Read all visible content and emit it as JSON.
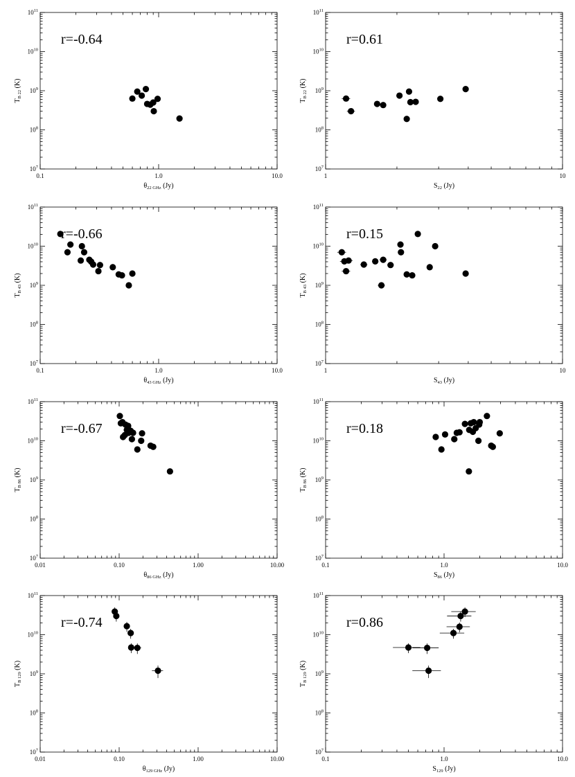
{
  "chart_data": [
    {
      "type": "scatter",
      "panel": "a",
      "xscale": "log",
      "yscale": "log",
      "xlim": [
        0.1,
        10
      ],
      "ylim": [
        10000000.0,
        100000000000.0
      ],
      "xticks": [
        "0.1",
        "1.0",
        "10.0"
      ],
      "yticks": [
        "10^7",
        "10^8",
        "10^9",
        "10^10",
        "10^11"
      ],
      "xlabel": {
        "main": "θ",
        "sub": "22 GHz",
        "unit": " (Jy)"
      },
      "ylabel": {
        "main": "T",
        "sub": "B 22",
        "unit": " (K)"
      },
      "annotation": "r=-0.64",
      "points": [
        [
          0.6,
          630000000.0
        ],
        [
          0.66,
          950000000.0
        ],
        [
          0.72,
          750000000.0
        ],
        [
          0.78,
          1100000000.0
        ],
        [
          0.8,
          460000000.0
        ],
        [
          0.85,
          440000000.0
        ],
        [
          0.9,
          500000000.0
        ],
        [
          0.91,
          300000000.0
        ],
        [
          0.98,
          620000000.0
        ],
        [
          1.5,
          195000000.0
        ]
      ]
    },
    {
      "type": "scatter",
      "panel": "b",
      "xscale": "log",
      "yscale": "log",
      "xlim": [
        1,
        10
      ],
      "ylim": [
        10000000.0,
        100000000000.0
      ],
      "xticks": [
        "1",
        "10"
      ],
      "yticks": [
        "10^7",
        "10^8",
        "10^9",
        "10^10",
        "10^11"
      ],
      "xlabel": {
        "main": "S",
        "sub": "22",
        "unit": " (Jy)"
      },
      "ylabel": {
        "main": "T",
        "sub": "B 22",
        "unit": " (K)"
      },
      "annotation": "r=0.61",
      "points": [
        [
          1.22,
          630000000.0,
          0.05
        ],
        [
          1.28,
          300000000.0,
          0.05
        ],
        [
          1.65,
          460000000.0,
          0.05
        ],
        [
          1.75,
          430000000.0,
          0.05
        ],
        [
          2.05,
          750000000.0,
          0.06
        ],
        [
          2.2,
          190000000.0,
          0.06
        ],
        [
          2.25,
          950000000.0,
          0.06
        ],
        [
          2.28,
          510000000.0,
          0.06
        ],
        [
          2.4,
          520000000.0,
          0.06
        ],
        [
          3.05,
          620000000.0,
          0.08
        ],
        [
          3.9,
          1100000000.0,
          0.1
        ]
      ]
    },
    {
      "type": "scatter",
      "panel": "c",
      "xscale": "log",
      "yscale": "log",
      "xlim": [
        0.1,
        10
      ],
      "ylim": [
        10000000.0,
        100000000000.0
      ],
      "xticks": [
        "0.1",
        "1.0",
        "10.0"
      ],
      "yticks": [
        "10^7",
        "10^8",
        "10^9",
        "10^10",
        "10^11"
      ],
      "xlabel": {
        "main": "θ",
        "sub": "43 GHz",
        "unit": " (Jy)"
      },
      "ylabel": {
        "main": "T",
        "sub": "B 43",
        "unit": " (K)"
      },
      "annotation": "r=-0.66",
      "points": [
        [
          0.148,
          20500000000.0
        ],
        [
          0.17,
          7000000000.0
        ],
        [
          0.18,
          11000000000.0
        ],
        [
          0.22,
          4300000000.0
        ],
        [
          0.225,
          10000000000.0
        ],
        [
          0.235,
          7000000000.0
        ],
        [
          0.26,
          4500000000.0
        ],
        [
          0.27,
          4000000000.0
        ],
        [
          0.28,
          3400000000.0
        ],
        [
          0.31,
          2300000000.0
        ],
        [
          0.32,
          3300000000.0
        ],
        [
          0.41,
          2900000000.0
        ],
        [
          0.46,
          1900000000.0
        ],
        [
          0.49,
          1800000000.0
        ],
        [
          0.56,
          1000000000.0
        ],
        [
          0.6,
          2000000000.0
        ]
      ]
    },
    {
      "type": "scatter",
      "panel": "d",
      "xscale": "log",
      "yscale": "log",
      "xlim": [
        1,
        10
      ],
      "ylim": [
        10000000.0,
        100000000000.0
      ],
      "xticks": [
        "1",
        "10"
      ],
      "yticks": [
        "10^7",
        "10^8",
        "10^9",
        "10^10",
        "10^11"
      ],
      "xlabel": {
        "main": "S",
        "sub": "43",
        "unit": " (Jy)"
      },
      "ylabel": {
        "main": "T",
        "sub": "B 43",
        "unit": " (K)"
      },
      "annotation": "r=0.15",
      "points": [
        [
          1.17,
          7000000000.0,
          0.05
        ],
        [
          1.2,
          4100000000.0,
          0.05
        ],
        [
          1.22,
          2300000000.0,
          0.05
        ],
        [
          1.25,
          4300000000.0,
          0.05
        ],
        [
          1.45,
          3400000000.0,
          0.05
        ],
        [
          1.62,
          4100000000.0,
          0.05
        ],
        [
          1.72,
          1000000000.0,
          0.06
        ],
        [
          1.75,
          4500000000.0,
          0.06
        ],
        [
          1.88,
          3300000000.0,
          0.06
        ],
        [
          2.07,
          11000000000.0,
          0.06
        ],
        [
          2.08,
          7000000000.0,
          0.06
        ],
        [
          2.2,
          1900000000.0,
          0.06
        ],
        [
          2.32,
          1800000000.0,
          0.06
        ],
        [
          2.45,
          20500000000.0,
          0.06
        ],
        [
          2.75,
          2900000000.0,
          0.07
        ],
        [
          2.9,
          10000000000.0,
          0.07
        ],
        [
          3.9,
          2000000000.0,
          0.1
        ]
      ]
    },
    {
      "type": "scatter",
      "panel": "e",
      "xscale": "log",
      "yscale": "log",
      "xlim": [
        0.01,
        10
      ],
      "ylim": [
        10000000.0,
        100000000000.0
      ],
      "xticks": [
        "0.01",
        "0.10",
        "1.00",
        "10.00"
      ],
      "yticks": [
        "10^7",
        "10^8",
        "10^9",
        "10^10",
        "10^11"
      ],
      "xlabel": {
        "main": "θ",
        "sub": "86 GHz",
        "unit": " (Jy)"
      },
      "ylabel": {
        "main": "T",
        "sub": "B 86",
        "unit": " (K)"
      },
      "annotation": "r=-0.67",
      "points": [
        [
          0.102,
          43000000000.0
        ],
        [
          0.105,
          28000000000.0
        ],
        [
          0.11,
          30000000000.0
        ],
        [
          0.112,
          12500000000.0
        ],
        [
          0.118,
          14000000000.0
        ],
        [
          0.12,
          26000000000.0
        ],
        [
          0.125,
          19000000000.0
        ],
        [
          0.13,
          24000000000.0
        ],
        [
          0.132,
          16000000000.0
        ],
        [
          0.14,
          18000000000.0
        ],
        [
          0.145,
          11000000000.0
        ],
        [
          0.15,
          16000000000.0
        ],
        [
          0.17,
          6000000000.0
        ],
        [
          0.19,
          10000000000.0
        ],
        [
          0.195,
          15500000000.0
        ],
        [
          0.25,
          7500000000.0
        ],
        [
          0.27,
          7000000000.0
        ],
        [
          0.44,
          1650000000.0
        ]
      ]
    },
    {
      "type": "scatter",
      "panel": "f",
      "xscale": "log",
      "yscale": "log",
      "xlim": [
        0.1,
        10
      ],
      "ylim": [
        10000000.0,
        100000000000.0
      ],
      "xticks": [
        "0.1",
        "1.0",
        "10.0"
      ],
      "yticks": [
        "10^7",
        "10^8",
        "10^9",
        "10^10",
        "10^11"
      ],
      "xlabel": {
        "main": "S",
        "sub": "86",
        "unit": " (Jy)"
      },
      "ylabel": {
        "main": "T",
        "sub": "B 86",
        "unit": " (K)"
      },
      "annotation": "r=0.18",
      "points": [
        [
          0.85,
          12500000000.0,
          0.05
        ],
        [
          0.95,
          6000000000.0,
          0.05
        ],
        [
          1.02,
          14500000000.0,
          0.05
        ],
        [
          1.22,
          11000000000.0,
          0.05
        ],
        [
          1.28,
          16000000000.0,
          0.06
        ],
        [
          1.35,
          16500000000.0,
          0.06
        ],
        [
          1.5,
          27000000000.0,
          0.06
        ],
        [
          1.62,
          1650000000.0,
          0.06
        ],
        [
          1.63,
          19000000000.0,
          0.06
        ],
        [
          1.68,
          28000000000.0,
          0.06
        ],
        [
          1.75,
          17000000000.0,
          0.06
        ],
        [
          1.78,
          30000000000.0,
          0.06
        ],
        [
          1.85,
          21000000000.0,
          0.07
        ],
        [
          1.95,
          10000000000.0,
          0.07
        ],
        [
          1.98,
          26000000000.0,
          0.07
        ],
        [
          2.0,
          30000000000.0,
          0.07
        ],
        [
          2.3,
          43000000000.0,
          0.08
        ],
        [
          2.5,
          7500000000.0,
          0.08
        ],
        [
          2.58,
          7000000000.0,
          0.08
        ],
        [
          2.95,
          15500000000.0,
          0.09
        ]
      ]
    },
    {
      "type": "scatter",
      "panel": "g",
      "xscale": "log",
      "yscale": "log",
      "xlim": [
        0.01,
        10
      ],
      "ylim": [
        10000000.0,
        100000000000.0
      ],
      "xticks": [
        "0.01",
        "0.10",
        "1.00",
        "10.00"
      ],
      "yticks": [
        "10^7",
        "10^8",
        "10^9",
        "10^10",
        "10^11"
      ],
      "xlabel": {
        "main": "θ",
        "sub": "129 GHz",
        "unit": " (Jy)"
      },
      "ylabel": {
        "main": "T",
        "sub": "B 129",
        "unit": " (K)"
      },
      "annotation": "r=-0.74",
      "points": [
        [
          0.088,
          39000000000.0,
          0.005,
          0.28
        ],
        [
          0.092,
          30000000000.0,
          0.005,
          0.28
        ],
        [
          0.125,
          16500000000.0,
          0.006,
          0.28
        ],
        [
          0.14,
          11000000000.0,
          0.007,
          0.28
        ],
        [
          0.142,
          4700000000.0,
          0.012,
          0.28
        ],
        [
          0.17,
          4600000000.0,
          0.02,
          0.3
        ],
        [
          0.31,
          1200000000.0,
          0.05,
          0.35
        ]
      ]
    },
    {
      "type": "scatter",
      "panel": "h",
      "xscale": "log",
      "yscale": "log",
      "xlim": [
        0.1,
        10
      ],
      "ylim": [
        10000000.0,
        100000000000.0
      ],
      "xticks": [
        "0.1",
        "1.0",
        "10.0"
      ],
      "yticks": [
        "10^7",
        "10^8",
        "10^9",
        "10^10",
        "10^11"
      ],
      "xlabel": {
        "main": "S",
        "sub": "129",
        "unit": " (Jy)"
      },
      "ylabel": {
        "main": "T",
        "sub": "B 129",
        "unit": " (K)"
      },
      "annotation": "r=0.86",
      "points": [
        [
          0.5,
          4700000000.0,
          0.13,
          0.28
        ],
        [
          0.72,
          4600000000.0,
          0.18,
          0.3
        ],
        [
          0.74,
          1200000000.0,
          0.2,
          0.35
        ],
        [
          1.2,
          11000000000.0,
          0.28,
          0.28
        ],
        [
          1.35,
          16000000000.0,
          0.3,
          0.28
        ],
        [
          1.38,
          30000000000.0,
          0.32,
          0.28
        ],
        [
          1.5,
          39000000000.0,
          0.35,
          0.28
        ]
      ]
    }
  ]
}
